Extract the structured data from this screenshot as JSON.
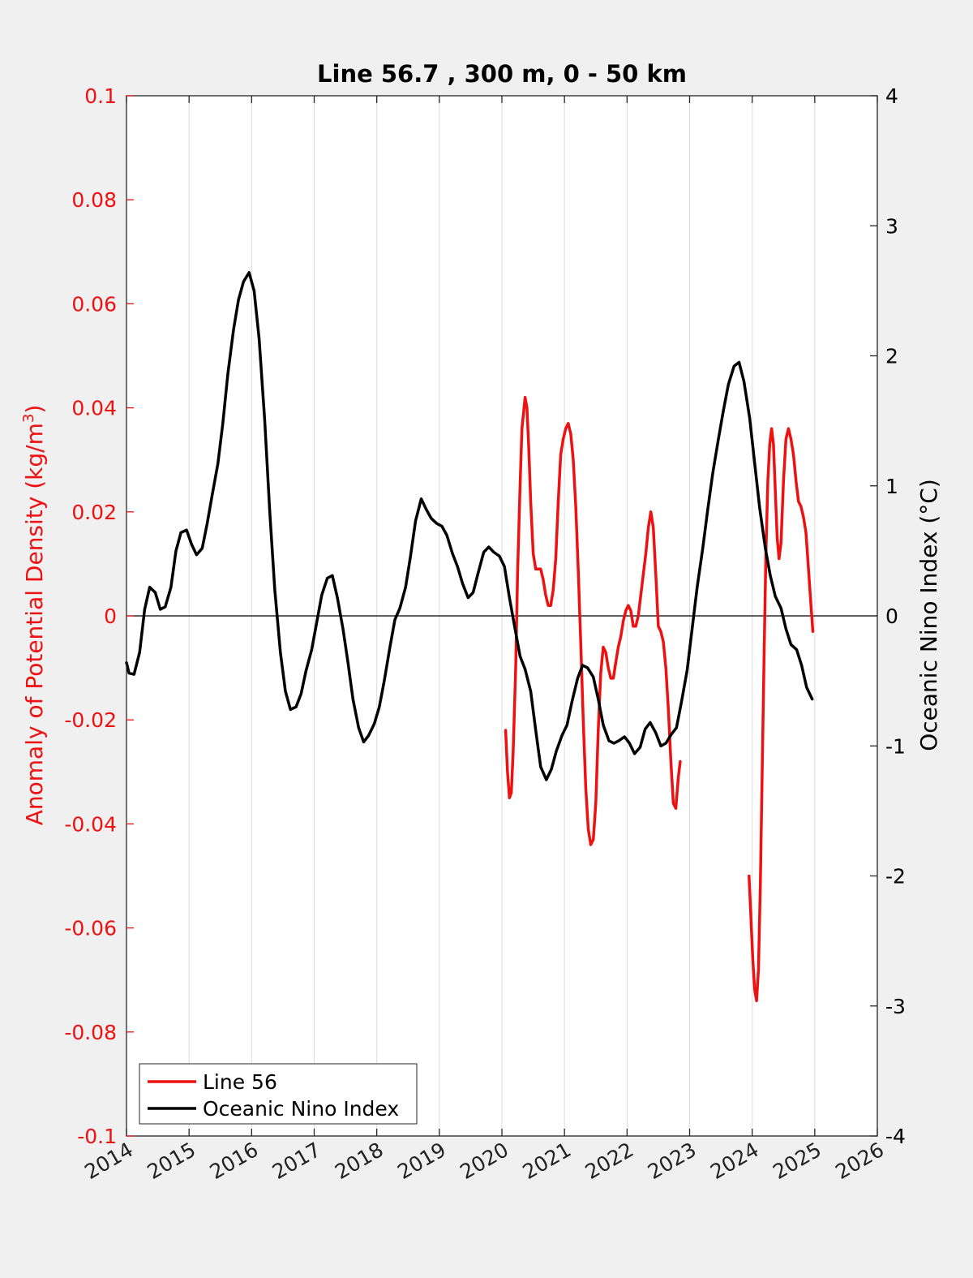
{
  "chart_data": {
    "type": "line",
    "title": "Line 56.7 , 300 m, 0 - 50 km",
    "ylabel_left": "Anomaly of Potential Density (kg/m",
    "ylabel_left_sup": "3",
    "ylabel_left_close": ")",
    "ylabel_right": "Oceanic Nino Index (°C)",
    "xlim": [
      2014,
      2026
    ],
    "ylim_left": [
      -0.1,
      0.1
    ],
    "ylim_right": [
      -4,
      4
    ],
    "x_ticks": [
      "2014",
      "2015",
      "2016",
      "2017",
      "2018",
      "2019",
      "2020",
      "2021",
      "2022",
      "2023",
      "2024",
      "2025",
      "2026"
    ],
    "y_left_ticks": [
      "0.1",
      "0.08",
      "0.06",
      "0.04",
      "0.02",
      "0",
      "-0.02",
      "-0.04",
      "-0.06",
      "-0.08",
      "-0.1"
    ],
    "y_right_ticks": [
      "4",
      "3",
      "2",
      "1",
      "0",
      "-1",
      "-2",
      "-3",
      "-4"
    ],
    "grid": "vertical",
    "legend_position": "bottom-left",
    "colors": {
      "line56": "#ee1111",
      "oni": "#000000"
    },
    "series": [
      {
        "name": "Line 56",
        "axis": "left",
        "segments": [
          [
            [
              2020.06,
              -0.022
            ],
            [
              2020.09,
              -0.03
            ],
            [
              2020.12,
              -0.035
            ],
            [
              2020.15,
              -0.034
            ],
            [
              2020.18,
              -0.026
            ],
            [
              2020.22,
              -0.01
            ],
            [
              2020.25,
              0.008
            ],
            [
              2020.29,
              0.025
            ],
            [
              2020.32,
              0.036
            ],
            [
              2020.37,
              0.042
            ],
            [
              2020.4,
              0.04
            ],
            [
              2020.43,
              0.032
            ],
            [
              2020.46,
              0.022
            ],
            [
              2020.5,
              0.012
            ],
            [
              2020.54,
              0.009
            ],
            [
              2020.58,
              0.009
            ],
            [
              2020.62,
              0.009
            ],
            [
              2020.66,
              0.007
            ],
            [
              2020.7,
              0.004
            ],
            [
              2020.74,
              0.002
            ],
            [
              2020.78,
              0.002
            ],
            [
              2020.82,
              0.005
            ],
            [
              2020.86,
              0.011
            ],
            [
              2020.9,
              0.022
            ],
            [
              2020.94,
              0.031
            ],
            [
              2020.98,
              0.034
            ],
            [
              2021.02,
              0.036
            ],
            [
              2021.06,
              0.037
            ],
            [
              2021.1,
              0.035
            ],
            [
              2021.14,
              0.03
            ],
            [
              2021.18,
              0.021
            ],
            [
              2021.22,
              0.009
            ],
            [
              2021.26,
              -0.005
            ],
            [
              2021.3,
              -0.02
            ],
            [
              2021.34,
              -0.033
            ],
            [
              2021.38,
              -0.041
            ],
            [
              2021.42,
              -0.044
            ],
            [
              2021.46,
              -0.043
            ],
            [
              2021.5,
              -0.036
            ],
            [
              2021.54,
              -0.022
            ],
            [
              2021.58,
              -0.011
            ],
            [
              2021.62,
              -0.006
            ],
            [
              2021.66,
              -0.007
            ],
            [
              2021.7,
              -0.01
            ],
            [
              2021.74,
              -0.012
            ],
            [
              2021.78,
              -0.012
            ],
            [
              2021.82,
              -0.009
            ],
            [
              2021.86,
              -0.006
            ],
            [
              2021.9,
              -0.004
            ],
            [
              2021.94,
              -0.001
            ],
            [
              2021.98,
              0.001
            ],
            [
              2022.02,
              0.002
            ],
            [
              2022.06,
              0.001
            ],
            [
              2022.1,
              -0.002
            ],
            [
              2022.14,
              -0.002
            ],
            [
              2022.18,
              0.0
            ],
            [
              2022.22,
              0.004
            ],
            [
              2022.26,
              0.008
            ],
            [
              2022.3,
              0.012
            ],
            [
              2022.34,
              0.017
            ],
            [
              2022.38,
              0.02
            ],
            [
              2022.42,
              0.017
            ],
            [
              2022.46,
              0.008
            ],
            [
              2022.5,
              -0.002
            ],
            [
              2022.54,
              -0.003
            ],
            [
              2022.58,
              -0.005
            ],
            [
              2022.62,
              -0.01
            ],
            [
              2022.66,
              -0.018
            ],
            [
              2022.7,
              -0.028
            ],
            [
              2022.74,
              -0.036
            ],
            [
              2022.78,
              -0.037
            ],
            [
              2022.82,
              -0.031
            ],
            [
              2022.85,
              -0.028
            ]
          ],
          [
            [
              2023.95,
              -0.05
            ],
            [
              2023.98,
              -0.058
            ],
            [
              2024.01,
              -0.066
            ],
            [
              2024.04,
              -0.072
            ],
            [
              2024.07,
              -0.074
            ],
            [
              2024.1,
              -0.068
            ],
            [
              2024.13,
              -0.052
            ],
            [
              2024.16,
              -0.03
            ],
            [
              2024.19,
              -0.008
            ],
            [
              2024.22,
              0.012
            ],
            [
              2024.25,
              0.026
            ],
            [
              2024.28,
              0.033
            ],
            [
              2024.31,
              0.036
            ],
            [
              2024.34,
              0.033
            ],
            [
              2024.37,
              0.024
            ],
            [
              2024.4,
              0.015
            ],
            [
              2024.43,
              0.011
            ],
            [
              2024.46,
              0.014
            ],
            [
              2024.5,
              0.026
            ],
            [
              2024.54,
              0.034
            ],
            [
              2024.58,
              0.036
            ],
            [
              2024.62,
              0.034
            ],
            [
              2024.66,
              0.031
            ],
            [
              2024.7,
              0.026
            ],
            [
              2024.74,
              0.022
            ],
            [
              2024.78,
              0.021
            ],
            [
              2024.82,
              0.019
            ],
            [
              2024.86,
              0.016
            ],
            [
              2024.9,
              0.009
            ],
            [
              2024.94,
              0.002
            ],
            [
              2024.97,
              -0.003
            ]
          ]
        ]
      },
      {
        "name": "Oceanic Nino Index",
        "axis": "right",
        "segments": [
          [
            [
              2014.0,
              -0.36
            ],
            [
              2014.04,
              -0.44
            ],
            [
              2014.12,
              -0.45
            ],
            [
              2014.21,
              -0.28
            ],
            [
              2014.29,
              0.05
            ],
            [
              2014.37,
              0.22
            ],
            [
              2014.46,
              0.18
            ],
            [
              2014.54,
              0.05
            ],
            [
              2014.62,
              0.07
            ],
            [
              2014.71,
              0.22
            ],
            [
              2014.79,
              0.5
            ],
            [
              2014.87,
              0.64
            ],
            [
              2014.96,
              0.66
            ],
            [
              2015.04,
              0.55
            ],
            [
              2015.12,
              0.47
            ],
            [
              2015.21,
              0.52
            ],
            [
              2015.29,
              0.71
            ],
            [
              2015.37,
              0.93
            ],
            [
              2015.46,
              1.17
            ],
            [
              2015.54,
              1.48
            ],
            [
              2015.62,
              1.86
            ],
            [
              2015.71,
              2.2
            ],
            [
              2015.79,
              2.43
            ],
            [
              2015.87,
              2.57
            ],
            [
              2015.96,
              2.64
            ],
            [
              2016.04,
              2.5
            ],
            [
              2016.12,
              2.13
            ],
            [
              2016.21,
              1.5
            ],
            [
              2016.29,
              0.8
            ],
            [
              2016.37,
              0.2
            ],
            [
              2016.46,
              -0.28
            ],
            [
              2016.54,
              -0.58
            ],
            [
              2016.62,
              -0.72
            ],
            [
              2016.71,
              -0.7
            ],
            [
              2016.79,
              -0.6
            ],
            [
              2016.87,
              -0.42
            ],
            [
              2016.96,
              -0.26
            ],
            [
              2017.04,
              -0.05
            ],
            [
              2017.12,
              0.16
            ],
            [
              2017.21,
              0.29
            ],
            [
              2017.29,
              0.31
            ],
            [
              2017.37,
              0.14
            ],
            [
              2017.46,
              -0.1
            ],
            [
              2017.54,
              -0.36
            ],
            [
              2017.62,
              -0.64
            ],
            [
              2017.71,
              -0.86
            ],
            [
              2017.79,
              -0.97
            ],
            [
              2017.87,
              -0.92
            ],
            [
              2017.96,
              -0.83
            ],
            [
              2018.04,
              -0.7
            ],
            [
              2018.12,
              -0.5
            ],
            [
              2018.21,
              -0.24
            ],
            [
              2018.29,
              -0.03
            ],
            [
              2018.37,
              0.06
            ],
            [
              2018.46,
              0.22
            ],
            [
              2018.54,
              0.46
            ],
            [
              2018.62,
              0.73
            ],
            [
              2018.71,
              0.9
            ],
            [
              2018.79,
              0.82
            ],
            [
              2018.87,
              0.75
            ],
            [
              2018.96,
              0.71
            ],
            [
              2019.04,
              0.69
            ],
            [
              2019.12,
              0.62
            ],
            [
              2019.21,
              0.48
            ],
            [
              2019.29,
              0.38
            ],
            [
              2019.37,
              0.25
            ],
            [
              2019.46,
              0.14
            ],
            [
              2019.54,
              0.18
            ],
            [
              2019.62,
              0.33
            ],
            [
              2019.71,
              0.49
            ],
            [
              2019.79,
              0.53
            ],
            [
              2019.87,
              0.49
            ],
            [
              2019.96,
              0.46
            ],
            [
              2020.04,
              0.38
            ],
            [
              2020.12,
              0.14
            ],
            [
              2020.21,
              -0.1
            ],
            [
              2020.29,
              -0.31
            ],
            [
              2020.37,
              -0.41
            ],
            [
              2020.46,
              -0.58
            ],
            [
              2020.54,
              -0.88
            ],
            [
              2020.62,
              -1.16
            ],
            [
              2020.71,
              -1.26
            ],
            [
              2020.79,
              -1.18
            ],
            [
              2020.87,
              -1.04
            ],
            [
              2020.96,
              -0.92
            ],
            [
              2021.04,
              -0.84
            ],
            [
              2021.12,
              -0.66
            ],
            [
              2021.21,
              -0.48
            ],
            [
              2021.29,
              -0.38
            ],
            [
              2021.37,
              -0.4
            ],
            [
              2021.46,
              -0.47
            ],
            [
              2021.54,
              -0.64
            ],
            [
              2021.62,
              -0.84
            ],
            [
              2021.71,
              -0.96
            ],
            [
              2021.79,
              -0.98
            ],
            [
              2021.87,
              -0.96
            ],
            [
              2021.96,
              -0.93
            ],
            [
              2022.04,
              -0.98
            ],
            [
              2022.12,
              -1.06
            ],
            [
              2022.21,
              -1.01
            ],
            [
              2022.29,
              -0.87
            ],
            [
              2022.37,
              -0.82
            ],
            [
              2022.46,
              -0.9
            ],
            [
              2022.54,
              -1.0
            ],
            [
              2022.62,
              -0.98
            ],
            [
              2022.71,
              -0.91
            ],
            [
              2022.79,
              -0.86
            ],
            [
              2022.87,
              -0.66
            ],
            [
              2022.96,
              -0.42
            ],
            [
              2023.04,
              -0.1
            ],
            [
              2023.12,
              0.22
            ],
            [
              2023.21,
              0.52
            ],
            [
              2023.29,
              0.82
            ],
            [
              2023.37,
              1.1
            ],
            [
              2023.46,
              1.36
            ],
            [
              2023.54,
              1.58
            ],
            [
              2023.62,
              1.78
            ],
            [
              2023.71,
              1.92
            ],
            [
              2023.79,
              1.95
            ],
            [
              2023.87,
              1.8
            ],
            [
              2023.96,
              1.52
            ],
            [
              2024.04,
              1.17
            ],
            [
              2024.12,
              0.83
            ],
            [
              2024.21,
              0.52
            ],
            [
              2024.29,
              0.31
            ],
            [
              2024.37,
              0.15
            ],
            [
              2024.46,
              0.06
            ],
            [
              2024.54,
              -0.1
            ],
            [
              2024.62,
              -0.22
            ],
            [
              2024.71,
              -0.26
            ],
            [
              2024.79,
              -0.38
            ],
            [
              2024.87,
              -0.55
            ],
            [
              2024.96,
              -0.64
            ]
          ]
        ]
      }
    ]
  }
}
